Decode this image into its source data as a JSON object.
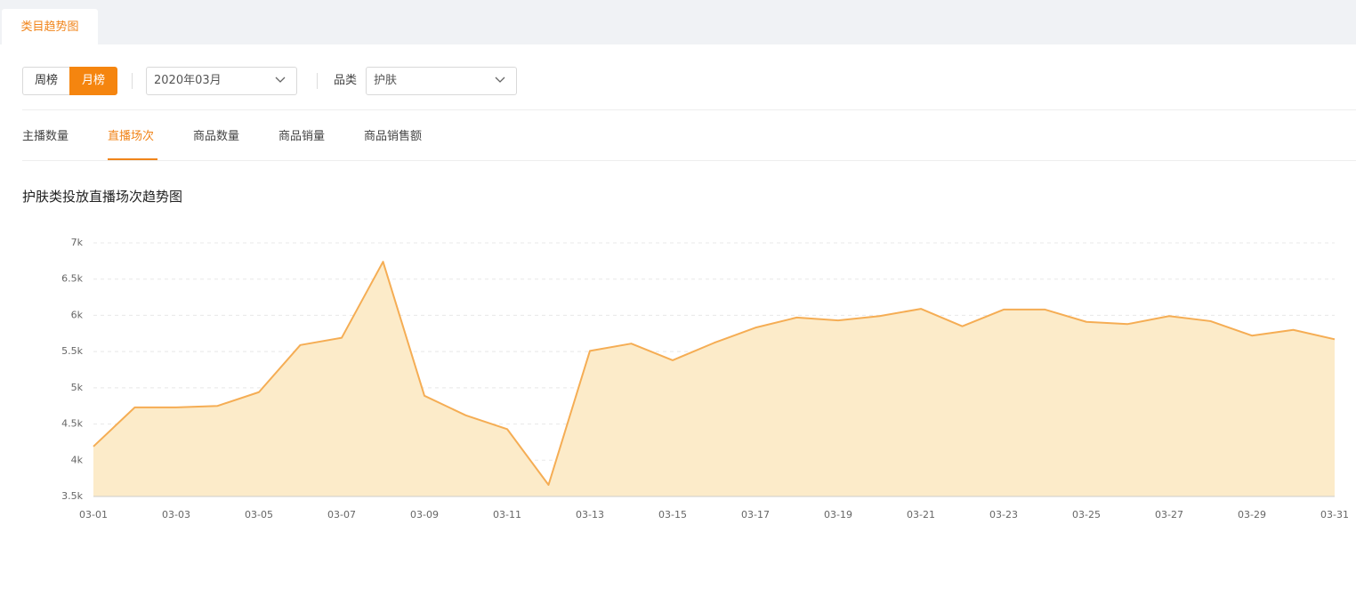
{
  "tab": "类目趋势图",
  "period_toggle": [
    "周榜",
    "月榜"
  ],
  "month_select": "2020年03月",
  "category_label": "品类",
  "category_select": "护肤",
  "metric_tabs": [
    "主播数量",
    "直播场次",
    "商品数量",
    "商品销量",
    "商品销售额"
  ],
  "chart_data": {
    "type": "area",
    "title": "护肤类投放直播场次趋势图",
    "categories": [
      "03-01",
      null,
      "03-03",
      null,
      "03-05",
      null,
      "03-07",
      null,
      "03-09",
      null,
      "03-11",
      null,
      "03-13",
      null,
      "03-15",
      null,
      "03-17",
      null,
      "03-19",
      null,
      "03-21",
      null,
      "03-23",
      null,
      "03-25",
      null,
      "03-27",
      null,
      "03-29",
      null,
      "03-31"
    ],
    "values": [
      4190,
      4730,
      4730,
      4750,
      4940,
      5590,
      5690,
      6740,
      4890,
      4620,
      4430,
      3660,
      5510,
      5610,
      5380,
      5620,
      5830,
      5970,
      5930,
      5990,
      6090,
      5850,
      6080,
      6080,
      5910,
      5880,
      5990,
      5920,
      5720,
      5800,
      5670
    ],
    "color": "#f5ad54",
    "fill_color": "#fcebc9",
    "ylim": [
      3500,
      7000
    ],
    "yticks": [
      {
        "value": 3500,
        "label": "3.5k"
      },
      {
        "value": 4000,
        "label": "4k"
      },
      {
        "value": 4500,
        "label": "4.5k"
      },
      {
        "value": 5000,
        "label": "5k"
      },
      {
        "value": 5500,
        "label": "5.5k"
      },
      {
        "value": 6000,
        "label": "6k"
      },
      {
        "value": 6500,
        "label": "6.5k"
      },
      {
        "value": 7000,
        "label": "7k"
      }
    ],
    "grid": true
  }
}
